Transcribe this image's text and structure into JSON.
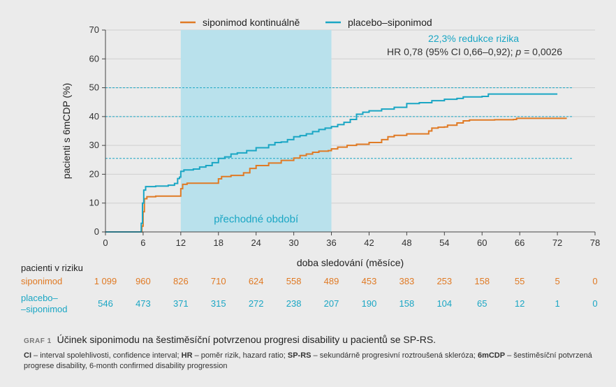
{
  "chart_data": {
    "type": "line",
    "xlabel": "doba sledování (měsíce)",
    "ylabel": "pacienti s 6mCDP (%)",
    "xlim": [
      0,
      78
    ],
    "ylim": [
      0,
      70
    ],
    "xticks": [
      0,
      6,
      12,
      18,
      24,
      30,
      36,
      42,
      48,
      54,
      60,
      66,
      72,
      78
    ],
    "yticks": [
      0,
      10,
      20,
      30,
      40,
      50,
      60,
      70
    ],
    "grid": "horizontal",
    "legend_position": "top",
    "shaded_region": {
      "x": [
        12,
        36
      ],
      "label": "přechodné období",
      "color": "#b9e1ec"
    },
    "reference_lines": [
      25.5,
      40,
      50
    ],
    "annotations": {
      "reduction": "22,3% redukce rizika",
      "hr_prefix": "HR 0,78 (95% CI 0,66–0,92); ",
      "p_symbol": "p",
      "p_value": " = 0,0026"
    },
    "series": [
      {
        "name": "siponimod kontinuálně",
        "color": "#e07a24",
        "points": [
          [
            0,
            0
          ],
          [
            5.7,
            0
          ],
          [
            5.8,
            2
          ],
          [
            6,
            7
          ],
          [
            6.2,
            11.5
          ],
          [
            6.6,
            12.2
          ],
          [
            8,
            12.4
          ],
          [
            11.8,
            12.4
          ],
          [
            12,
            15
          ],
          [
            12.3,
            16.5
          ],
          [
            13,
            16.9
          ],
          [
            17.5,
            16.9
          ],
          [
            18,
            18.4
          ],
          [
            18.5,
            19.2
          ],
          [
            20,
            19.6
          ],
          [
            22,
            20.5
          ],
          [
            23,
            22
          ],
          [
            24,
            23
          ],
          [
            26,
            23.9
          ],
          [
            28,
            24.8
          ],
          [
            30,
            25.6
          ],
          [
            31,
            26.5
          ],
          [
            32,
            27
          ],
          [
            33,
            27.6
          ],
          [
            34,
            28
          ],
          [
            35.5,
            28.2
          ],
          [
            36,
            28.8
          ],
          [
            37,
            29.4
          ],
          [
            38.5,
            30
          ],
          [
            40,
            30.4
          ],
          [
            42,
            31
          ],
          [
            44,
            32
          ],
          [
            45,
            33
          ],
          [
            46,
            33.5
          ],
          [
            48,
            34
          ],
          [
            50,
            34
          ],
          [
            51.5,
            35
          ],
          [
            52,
            36
          ],
          [
            53,
            36.3
          ],
          [
            54,
            36.4
          ],
          [
            54.5,
            37
          ],
          [
            56,
            37.8
          ],
          [
            57,
            38.5
          ],
          [
            58,
            38.8
          ],
          [
            62,
            38.9
          ],
          [
            65,
            39
          ],
          [
            65.5,
            39.4
          ],
          [
            73.5,
            39.4
          ]
        ]
      },
      {
        "name": "placebo–siponimod",
        "color": "#1aa6c4",
        "points": [
          [
            0,
            0
          ],
          [
            5.6,
            0
          ],
          [
            5.7,
            3
          ],
          [
            5.9,
            10
          ],
          [
            6.1,
            14.5
          ],
          [
            6.4,
            15.7
          ],
          [
            8,
            15.9
          ],
          [
            10,
            16.2
          ],
          [
            11,
            16.8
          ],
          [
            11.5,
            18.5
          ],
          [
            11.8,
            19
          ],
          [
            12,
            21
          ],
          [
            12.5,
            21.5
          ],
          [
            14,
            21.8
          ],
          [
            15,
            22.5
          ],
          [
            16,
            23
          ],
          [
            17,
            24
          ],
          [
            18,
            25.5
          ],
          [
            19,
            26
          ],
          [
            20,
            27
          ],
          [
            21,
            27.4
          ],
          [
            22.5,
            28.2
          ],
          [
            24,
            29.2
          ],
          [
            26,
            30.2
          ],
          [
            27,
            31
          ],
          [
            28,
            31.2
          ],
          [
            29,
            32
          ],
          [
            30,
            33
          ],
          [
            31,
            33.4
          ],
          [
            32,
            34
          ],
          [
            33,
            34.8
          ],
          [
            34,
            35.5
          ],
          [
            35,
            36
          ],
          [
            36,
            36.5
          ],
          [
            37,
            37.2
          ],
          [
            38,
            38
          ],
          [
            39,
            39
          ],
          [
            40,
            40.8
          ],
          [
            41,
            41.5
          ],
          [
            42,
            42
          ],
          [
            44,
            42.6
          ],
          [
            46,
            43.2
          ],
          [
            48,
            44.5
          ],
          [
            50,
            44.8
          ],
          [
            52,
            45.5
          ],
          [
            54,
            46
          ],
          [
            56,
            46.3
          ],
          [
            57,
            46.8
          ],
          [
            60,
            47
          ],
          [
            61,
            47.8
          ],
          [
            66,
            47.8
          ],
          [
            72,
            47.8
          ]
        ]
      }
    ]
  },
  "legend": [
    {
      "label": "siponimod kontinuálně",
      "color": "#e07a24"
    },
    {
      "label": "placebo–siponimod",
      "color": "#1aa6c4"
    }
  ],
  "risk_table": {
    "header": "pacienti v riziku",
    "x": [
      0,
      6,
      12,
      18,
      24,
      30,
      36,
      42,
      48,
      54,
      60,
      66,
      72,
      78
    ],
    "rows": [
      {
        "label_lines": [
          "siponimod"
        ],
        "color": "#e07a24",
        "values": [
          "1 099",
          "960",
          "826",
          "710",
          "624",
          "558",
          "489",
          "453",
          "383",
          "253",
          "158",
          "55",
          "5",
          "0"
        ]
      },
      {
        "label_lines": [
          "placebo–",
          "–siponimod"
        ],
        "color": "#1aa6c4",
        "values": [
          "546",
          "473",
          "371",
          "315",
          "272",
          "238",
          "207",
          "190",
          "158",
          "104",
          "65",
          "12",
          "1",
          "0"
        ]
      }
    ]
  },
  "caption": {
    "graf_label": "GRAF 1",
    "title": "Účinek siponimodu na šestiměsíční potvrzenou progresi disability u pacientů se SP-RS.",
    "abbreviations": [
      {
        "term": "CI",
        "desc": " – interval spolehlivosti, confidence interval; "
      },
      {
        "term": "HR",
        "desc": " – poměr rizik, hazard ratio; "
      },
      {
        "term": "SP-RS",
        "desc": " – sekundárně progresivní roztroušená skleróza; "
      },
      {
        "term": "6mCDP",
        "desc": " – šestiměsíční potvrzená progrese disability, 6-month confirmed disability progression"
      }
    ]
  }
}
